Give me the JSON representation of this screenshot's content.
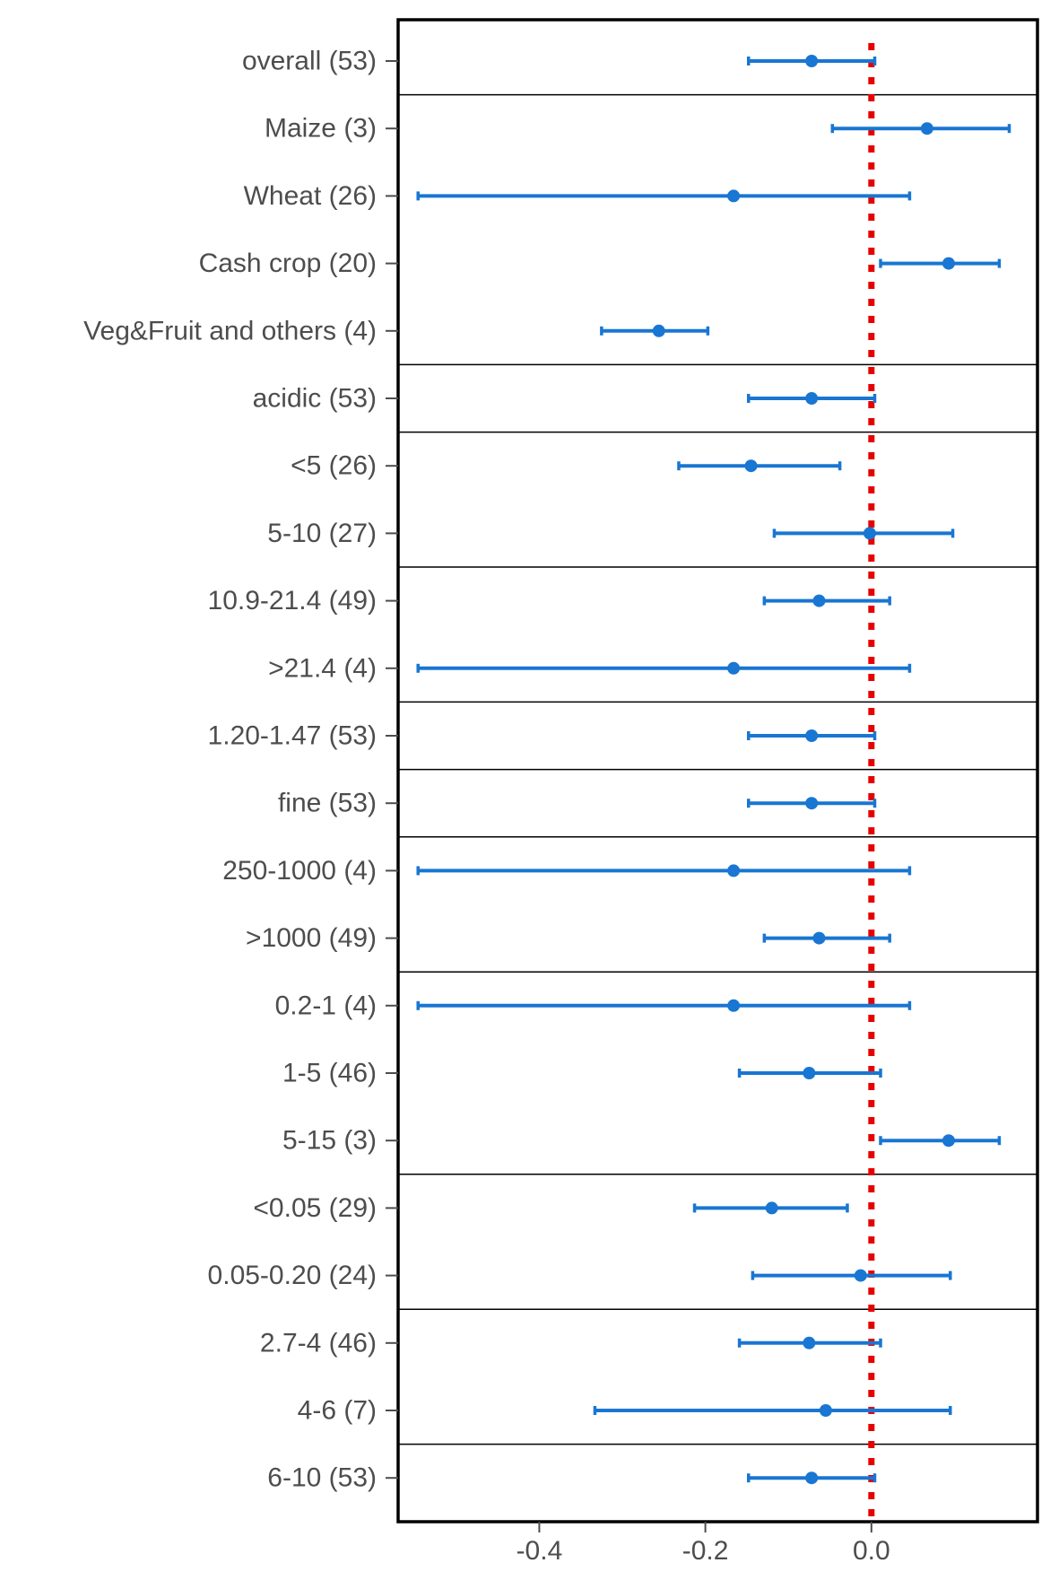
{
  "chart_data": {
    "type": "forest",
    "title": "",
    "xlabel": "",
    "ylabel": "",
    "xlim": [
      -0.57,
      0.2
    ],
    "xticks": [
      -0.4,
      -0.2,
      0.0
    ],
    "xtick_labels": [
      "-0.4",
      "-0.2",
      "0.0"
    ],
    "reference_line": {
      "x": 0.0,
      "style": "dotted",
      "color": "#e60000"
    },
    "colors": {
      "points": "#1976d2",
      "frame": "#000000",
      "text": "#4d4d4d"
    },
    "grid": false,
    "legend": "none",
    "groups": [
      {
        "rows": [
          {
            "label": "overall (53)",
            "mean": -0.072,
            "low": -0.148,
            "high": 0.004
          }
        ]
      },
      {
        "rows": [
          {
            "label": "Maize (3)",
            "mean": 0.067,
            "low": -0.047,
            "high": 0.166
          },
          {
            "label": "Wheat (26)",
            "mean": -0.166,
            "low": -0.546,
            "high": 0.046
          },
          {
            "label": "Cash crop (20)",
            "mean": 0.093,
            "low": 0.011,
            "high": 0.154
          },
          {
            "label": "Veg&Fruit and others (4)",
            "mean": -0.256,
            "low": -0.325,
            "high": -0.197
          }
        ]
      },
      {
        "rows": [
          {
            "label": "acidic (53)",
            "mean": -0.072,
            "low": -0.148,
            "high": 0.004
          }
        ]
      },
      {
        "rows": [
          {
            "label": "<5 (26)",
            "mean": -0.145,
            "low": -0.232,
            "high": -0.038
          },
          {
            "label": "5-10 (27)",
            "mean": -0.002,
            "low": -0.117,
            "high": 0.098
          }
        ]
      },
      {
        "rows": [
          {
            "label": "10.9-21.4 (49)",
            "mean": -0.063,
            "low": -0.129,
            "high": 0.022
          },
          {
            "label": ">21.4 (4)",
            "mean": -0.166,
            "low": -0.546,
            "high": 0.046
          }
        ]
      },
      {
        "rows": [
          {
            "label": "1.20-1.47 (53)",
            "mean": -0.072,
            "low": -0.148,
            "high": 0.004
          }
        ]
      },
      {
        "rows": [
          {
            "label": "fine (53)",
            "mean": -0.072,
            "low": -0.148,
            "high": 0.004
          }
        ]
      },
      {
        "rows": [
          {
            "label": "250-1000 (4)",
            "mean": -0.166,
            "low": -0.546,
            "high": 0.046
          },
          {
            "label": ">1000 (49)",
            "mean": -0.063,
            "low": -0.129,
            "high": 0.022
          }
        ]
      },
      {
        "rows": [
          {
            "label": "0.2-1 (4)",
            "mean": -0.166,
            "low": -0.546,
            "high": 0.046
          },
          {
            "label": "1-5 (46)",
            "mean": -0.075,
            "low": -0.159,
            "high": 0.011
          },
          {
            "label": "5-15 (3)",
            "mean": 0.093,
            "low": 0.011,
            "high": 0.154
          }
        ]
      },
      {
        "rows": [
          {
            "label": "<0.05 (29)",
            "mean": -0.12,
            "low": -0.213,
            "high": -0.029
          },
          {
            "label": "0.05-0.20 (24)",
            "mean": -0.013,
            "low": -0.143,
            "high": 0.095
          }
        ]
      },
      {
        "rows": [
          {
            "label": "2.7-4 (46)",
            "mean": -0.075,
            "low": -0.159,
            "high": 0.011
          },
          {
            "label": "4-6 (7)",
            "mean": -0.055,
            "low": -0.333,
            "high": 0.095
          }
        ]
      },
      {
        "rows": [
          {
            "label": "6-10 (53)",
            "mean": -0.072,
            "low": -0.148,
            "high": 0.004
          }
        ]
      }
    ]
  }
}
